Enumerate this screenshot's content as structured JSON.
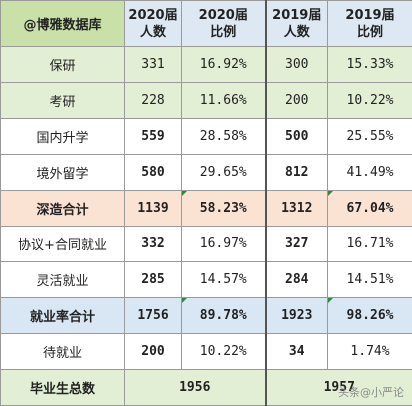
{
  "header": {
    "label": "@博雅数据库",
    "col_2020_count": [
      "2020届",
      "人数"
    ],
    "col_2020_ratio": [
      "2020届",
      "比例"
    ],
    "col_2019_count": [
      "2019届",
      "人数"
    ],
    "col_2019_ratio": [
      "2019届",
      "比例"
    ]
  },
  "rows": [
    {
      "label": "保研",
      "c2020": "331",
      "r2020": "16.92%",
      "c2019": "300",
      "r2019": "15.33%"
    },
    {
      "label": "考研",
      "c2020": "228",
      "r2020": "11.66%",
      "c2019": "200",
      "r2019": "10.22%"
    },
    {
      "label": "国内升学",
      "c2020": "559",
      "r2020": "28.58%",
      "c2019": "500",
      "r2019": "25.55%"
    },
    {
      "label": "境外留学",
      "c2020": "580",
      "r2020": "29.65%",
      "c2019": "812",
      "r2019": "41.49%"
    },
    {
      "label": "深造合计",
      "c2020": "1139",
      "r2020": "58.23%",
      "c2019": "1312",
      "r2019": "67.04%"
    },
    {
      "label": "协议+合同就业",
      "c2020": "332",
      "r2020": "16.97%",
      "c2019": "327",
      "r2019": "16.71%"
    },
    {
      "label": "灵活就业",
      "c2020": "285",
      "r2020": "14.57%",
      "c2019": "284",
      "r2019": "14.51%"
    },
    {
      "label": "就业率合计",
      "c2020": "1756",
      "r2020": "89.78%",
      "c2019": "1923",
      "r2019": "98.26%"
    },
    {
      "label": "待就业",
      "c2020": "200",
      "r2020": "10.22%",
      "c2019": "34",
      "r2019": "1.74%"
    }
  ],
  "total": {
    "label": "毕业生总数",
    "v2020": "1956",
    "v2019": "1957"
  },
  "watermark": "头条@小严论",
  "colors": {
    "accent_red": "#c00000",
    "value_blue": "#1f6aa8",
    "header_green": "#c9e0a8",
    "header_blue": "#dde8f3",
    "orange_row": "#fbe3d3"
  }
}
